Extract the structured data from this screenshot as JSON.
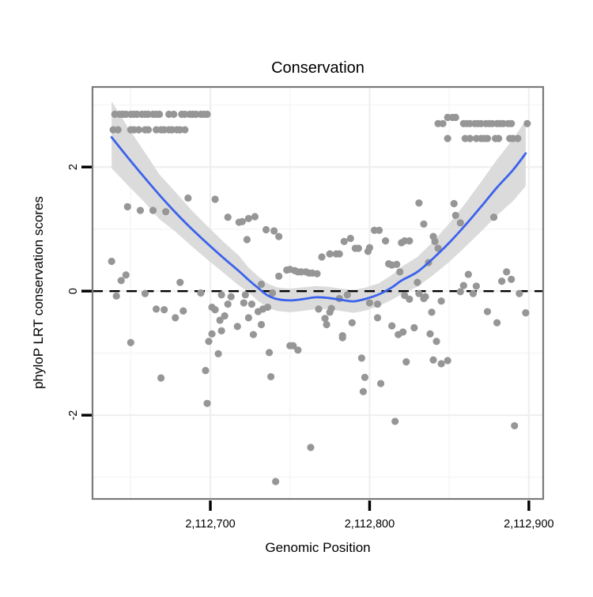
{
  "figure": {
    "title": "Conservation",
    "xlabel": "Genomic Position",
    "ylabel": "phyloP LRT conservation scores"
  },
  "colors": {
    "point": "#969696",
    "smooth_line": "#3B62EC",
    "confidence_band": "#DBDBDB",
    "zero_line": "#000000",
    "panel_border": "#7A7A7A",
    "grid_major": "#efefef",
    "grid_minor": "#f6f6f6",
    "background": "#ffffff"
  },
  "chart_data": {
    "type": "scatter",
    "title": "Conservation",
    "xlabel": "Genomic Position",
    "ylabel": "phyloP LRT conservation scores",
    "grid": true,
    "legend_position": "none",
    "x_domain": [
      2112626,
      2112909
    ],
    "y_domain": [
      -3.35,
      3.29
    ],
    "x_ticks": [
      {
        "value": 2112700,
        "label": "2,112,700"
      },
      {
        "value": 2112800,
        "label": "2,112,800"
      },
      {
        "value": 2112900,
        "label": "2,112,900"
      }
    ],
    "y_ticks": [
      {
        "value": 2,
        "label": "2"
      },
      {
        "value": 0,
        "label": "0"
      },
      {
        "value": -2,
        "label": "-2"
      }
    ],
    "x_grid_major": [
      2112700,
      2112800,
      2112900
    ],
    "x_grid_minor": [
      2112650,
      2112750,
      2112850
    ],
    "y_grid_major": [
      -2,
      0,
      2
    ],
    "y_grid_minor": [
      -3,
      -1,
      1,
      3
    ],
    "reference_line": {
      "y": 0,
      "style": "dashed"
    },
    "smooth_line": [
      [
        2112638,
        2.48
      ],
      [
        2112648,
        2.16
      ],
      [
        2112658,
        1.85
      ],
      [
        2112668,
        1.55
      ],
      [
        2112678,
        1.27
      ],
      [
        2112688,
        1.01
      ],
      [
        2112698,
        0.77
      ],
      [
        2112708,
        0.54
      ],
      [
        2112718,
        0.32
      ],
      [
        2112724,
        0.18
      ],
      [
        2112730,
        0.05
      ],
      [
        2112736,
        -0.07
      ],
      [
        2112742,
        -0.13
      ],
      [
        2112750,
        -0.15
      ],
      [
        2112758,
        -0.13
      ],
      [
        2112766,
        -0.1
      ],
      [
        2112774,
        -0.11
      ],
      [
        2112782,
        -0.14
      ],
      [
        2112790,
        -0.165
      ],
      [
        2112798,
        -0.12
      ],
      [
        2112806,
        -0.05
      ],
      [
        2112814,
        0.06
      ],
      [
        2112820,
        0.17
      ],
      [
        2112830,
        0.31
      ],
      [
        2112840,
        0.53
      ],
      [
        2112850,
        0.78
      ],
      [
        2112860,
        1.06
      ],
      [
        2112870,
        1.36
      ],
      [
        2112880,
        1.67
      ],
      [
        2112890,
        1.95
      ],
      [
        2112898,
        2.22
      ]
    ],
    "confidence_band": [
      [
        2112638,
        1.98,
        3.06
      ],
      [
        2112648,
        1.71,
        2.65
      ],
      [
        2112658,
        1.45,
        2.27
      ],
      [
        2112668,
        1.16,
        1.88
      ],
      [
        2112678,
        0.96,
        1.6
      ],
      [
        2112688,
        0.73,
        1.31
      ],
      [
        2112698,
        0.51,
        1.05
      ],
      [
        2112708,
        0.3,
        0.8
      ],
      [
        2112718,
        0.09,
        0.57
      ],
      [
        2112724,
        -0.02,
        0.38
      ],
      [
        2112730,
        -0.16,
        0.24
      ],
      [
        2112736,
        -0.27,
        0.12
      ],
      [
        2112742,
        -0.32,
        0.06
      ],
      [
        2112750,
        -0.34,
        0.04
      ],
      [
        2112758,
        -0.32,
        0.06
      ],
      [
        2112766,
        -0.29,
        0.08
      ],
      [
        2112774,
        -0.29,
        0.07
      ],
      [
        2112782,
        -0.32,
        0.04
      ],
      [
        2112790,
        -0.35,
        0.02
      ],
      [
        2112798,
        -0.31,
        0.06
      ],
      [
        2112806,
        -0.24,
        0.13
      ],
      [
        2112814,
        -0.14,
        0.26
      ],
      [
        2112820,
        -0.05,
        0.39
      ],
      [
        2112830,
        0.07,
        0.55
      ],
      [
        2112840,
        0.26,
        0.8
      ],
      [
        2112850,
        0.47,
        1.09
      ],
      [
        2112860,
        0.71,
        1.41
      ],
      [
        2112870,
        0.96,
        1.76
      ],
      [
        2112880,
        1.22,
        2.12
      ],
      [
        2112890,
        1.45,
        2.45
      ],
      [
        2112898,
        1.69,
        2.75
      ]
    ],
    "points": [
      [
        2112640,
        2.85
      ],
      [
        2112643,
        2.85
      ],
      [
        2112645,
        2.85
      ],
      [
        2112647,
        2.85
      ],
      [
        2112650,
        2.85
      ],
      [
        2112652,
        2.85
      ],
      [
        2112654,
        2.85
      ],
      [
        2112657,
        2.85
      ],
      [
        2112659,
        2.85
      ],
      [
        2112661,
        2.85
      ],
      [
        2112664,
        2.85
      ],
      [
        2112666,
        2.85
      ],
      [
        2112668,
        2.85
      ],
      [
        2112674,
        2.85
      ],
      [
        2112677,
        2.85
      ],
      [
        2112682,
        2.85
      ],
      [
        2112684,
        2.85
      ],
      [
        2112687,
        2.85
      ],
      [
        2112689,
        2.85
      ],
      [
        2112691,
        2.85
      ],
      [
        2112694,
        2.85
      ],
      [
        2112696,
        2.85
      ],
      [
        2112698,
        2.85
      ],
      [
        2112639,
        2.6
      ],
      [
        2112642,
        2.6
      ],
      [
        2112650,
        2.6
      ],
      [
        2112652,
        2.6
      ],
      [
        2112655,
        2.6
      ],
      [
        2112659,
        2.6
      ],
      [
        2112661,
        2.6
      ],
      [
        2112666,
        2.6
      ],
      [
        2112669,
        2.6
      ],
      [
        2112671,
        2.6
      ],
      [
        2112674,
        2.6
      ],
      [
        2112676,
        2.6
      ],
      [
        2112679,
        2.6
      ],
      [
        2112681,
        2.6
      ],
      [
        2112684,
        2.6
      ],
      [
        2112849,
        2.8
      ],
      [
        2112852,
        2.8
      ],
      [
        2112854,
        2.8
      ],
      [
        2112843,
        2.7
      ],
      [
        2112846,
        2.7
      ],
      [
        2112859,
        2.7
      ],
      [
        2112861,
        2.7
      ],
      [
        2112863,
        2.7
      ],
      [
        2112866,
        2.7
      ],
      [
        2112868,
        2.7
      ],
      [
        2112870,
        2.7
      ],
      [
        2112873,
        2.7
      ],
      [
        2112875,
        2.7
      ],
      [
        2112877,
        2.7
      ],
      [
        2112880,
        2.7
      ],
      [
        2112882,
        2.7
      ],
      [
        2112884,
        2.7
      ],
      [
        2112887,
        2.7
      ],
      [
        2112889,
        2.7
      ],
      [
        2112899,
        2.7
      ],
      [
        2112849,
        2.46
      ],
      [
        2112860,
        2.46
      ],
      [
        2112863,
        2.46
      ],
      [
        2112867,
        2.46
      ],
      [
        2112870,
        2.46
      ],
      [
        2112872,
        2.46
      ],
      [
        2112874,
        2.46
      ],
      [
        2112879,
        2.46
      ],
      [
        2112881,
        2.46
      ],
      [
        2112888,
        2.46
      ],
      [
        2112890,
        2.46
      ],
      [
        2112893,
        2.46
      ],
      [
        2112638,
        0.48
      ],
      [
        2112641,
        -0.08
      ],
      [
        2112644,
        0.17
      ],
      [
        2112647,
        0.26
      ],
      [
        2112648,
        1.36
      ],
      [
        2112650,
        -0.83
      ],
      [
        2112656,
        1.3
      ],
      [
        2112659,
        -0.04
      ],
      [
        2112664,
        1.3
      ],
      [
        2112666,
        -0.29
      ],
      [
        2112669,
        -1.4
      ],
      [
        2112671,
        -0.3
      ],
      [
        2112672,
        1.28
      ],
      [
        2112678,
        -0.43
      ],
      [
        2112681,
        0.14
      ],
      [
        2112683,
        -0.32
      ],
      [
        2112686,
        1.5
      ],
      [
        2112694,
        -0.03
      ],
      [
        2112697,
        -1.28
      ],
      [
        2112698,
        -1.81
      ],
      [
        2112699,
        -0.81
      ],
      [
        2112701,
        -0.26
      ],
      [
        2112701,
        -0.69
      ],
      [
        2112703,
        1.48
      ],
      [
        2112703,
        -0.3
      ],
      [
        2112705,
        -1.01
      ],
      [
        2112706,
        -0.47
      ],
      [
        2112707,
        -0.06
      ],
      [
        2112707,
        -0.64
      ],
      [
        2112709,
        -0.4
      ],
      [
        2112711,
        1.19
      ],
      [
        2112711,
        -0.21
      ],
      [
        2112713,
        -0.09
      ],
      [
        2112717,
        -0.57
      ],
      [
        2112718,
        1.11
      ],
      [
        2112720,
        1.12
      ],
      [
        2112721,
        -0.19
      ],
      [
        2112722,
        -0.06
      ],
      [
        2112723,
        0.83
      ],
      [
        2112724,
        1.17
      ],
      [
        2112724,
        -0.43
      ],
      [
        2112726,
        -0.21
      ],
      [
        2112727,
        -0.7
      ],
      [
        2112728,
        1.2
      ],
      [
        2112730,
        -0.33
      ],
      [
        2112732,
        0.11
      ],
      [
        2112732,
        -0.54
      ],
      [
        2112733,
        -0.29
      ],
      [
        2112735,
        0.99
      ],
      [
        2112736,
        -0.26
      ],
      [
        2112737,
        -0.99
      ],
      [
        2112738,
        -1.38
      ],
      [
        2112739,
        -0.03
      ],
      [
        2112740,
        0.97
      ],
      [
        2112741,
        -3.07
      ],
      [
        2112743,
        0.88
      ],
      [
        2112743,
        0.24
      ],
      [
        2112748,
        0.34
      ],
      [
        2112750,
        0.35
      ],
      [
        2112750,
        -0.88
      ],
      [
        2112752,
        -0.88
      ],
      [
        2112753,
        0.33
      ],
      [
        2112755,
        0.31
      ],
      [
        2112755,
        -0.95
      ],
      [
        2112757,
        0.31
      ],
      [
        2112760,
        0.31
      ],
      [
        2112762,
        0.29
      ],
      [
        2112763,
        -2.52
      ],
      [
        2112764,
        0.29
      ],
      [
        2112767,
        0.28
      ],
      [
        2112768,
        -0.29
      ],
      [
        2112770,
        0.55
      ],
      [
        2112772,
        -0.44
      ],
      [
        2112773,
        -0.54
      ],
      [
        2112775,
        0.6
      ],
      [
        2112775,
        -0.34
      ],
      [
        2112776,
        -0.28
      ],
      [
        2112779,
        0.6
      ],
      [
        2112781,
        0.6
      ],
      [
        2112781,
        -0.12
      ],
      [
        2112783,
        -0.72
      ],
      [
        2112783,
        -0.75
      ],
      [
        2112784,
        0.8
      ],
      [
        2112786,
        -0.06
      ],
      [
        2112788,
        0.85
      ],
      [
        2112789,
        -0.51
      ],
      [
        2112791,
        0.69
      ],
      [
        2112793,
        0.69
      ],
      [
        2112795,
        -1.08
      ],
      [
        2112796,
        -1.62
      ],
      [
        2112797,
        -1.39
      ],
      [
        2112799,
        0.64
      ],
      [
        2112800,
        0.7
      ],
      [
        2112800,
        -0.19
      ],
      [
        2112803,
        0.98
      ],
      [
        2112805,
        -0.21
      ],
      [
        2112805,
        -0.43
      ],
      [
        2112806,
        0.98
      ],
      [
        2112807,
        -1.49
      ],
      [
        2112810,
        0.81
      ],
      [
        2112812,
        0.44
      ],
      [
        2112814,
        0.42
      ],
      [
        2112814,
        -0.56
      ],
      [
        2112816,
        -2.1
      ],
      [
        2112817,
        0.43
      ],
      [
        2112818,
        -0.7
      ],
      [
        2112819,
        0.31
      ],
      [
        2112820,
        0.78
      ],
      [
        2112821,
        -0.66
      ],
      [
        2112822,
        0.81
      ],
      [
        2112822,
        -0.07
      ],
      [
        2112823,
        -1.14
      ],
      [
        2112825,
        0.81
      ],
      [
        2112825,
        -0.13
      ],
      [
        2112828,
        -0.59
      ],
      [
        2112830,
        0.14
      ],
      [
        2112831,
        1.42
      ],
      [
        2112831,
        -0.04
      ],
      [
        2112834,
        1.08
      ],
      [
        2112834,
        -0.12
      ],
      [
        2112835,
        -0.09
      ],
      [
        2112837,
        0.46
      ],
      [
        2112838,
        -0.69
      ],
      [
        2112839,
        -0.34
      ],
      [
        2112840,
        0.88
      ],
      [
        2112840,
        -1.11
      ],
      [
        2112841,
        0.8
      ],
      [
        2112842,
        -0.81
      ],
      [
        2112843,
        0.69
      ],
      [
        2112845,
        -0.16
      ],
      [
        2112845,
        -1.17
      ],
      [
        2112849,
        -1.12
      ],
      [
        2112853,
        1.41
      ],
      [
        2112854,
        1.22
      ],
      [
        2112857,
        1.1
      ],
      [
        2112857,
        -0.01
      ],
      [
        2112859,
        0.09
      ],
      [
        2112862,
        0.27
      ],
      [
        2112865,
        -0.04
      ],
      [
        2112867,
        0.08
      ],
      [
        2112874,
        -0.33
      ],
      [
        2112878,
        1.19
      ],
      [
        2112880,
        -0.51
      ],
      [
        2112883,
        0.16
      ],
      [
        2112886,
        0.31
      ],
      [
        2112889,
        0.19
      ],
      [
        2112891,
        -2.17
      ],
      [
        2112894,
        -0.04
      ],
      [
        2112898,
        -0.35
      ]
    ]
  }
}
